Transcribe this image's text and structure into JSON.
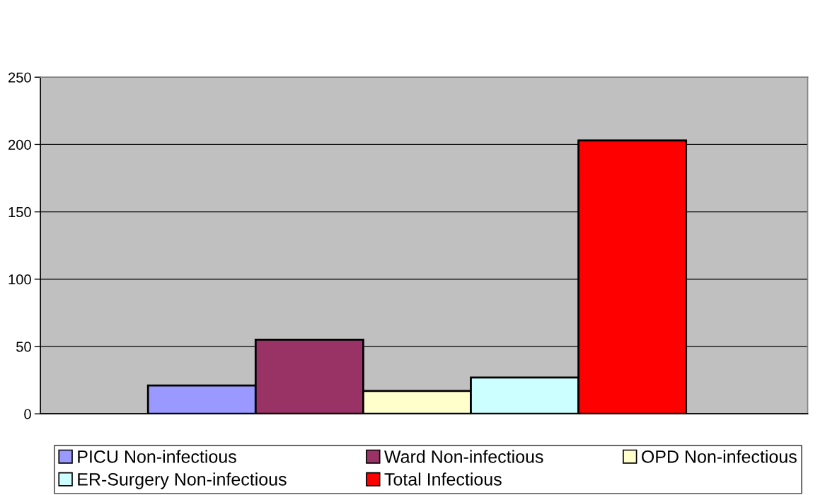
{
  "chart_data": {
    "type": "bar",
    "categories": [
      null
    ],
    "series": [
      {
        "name": "PICU Non-infectious",
        "color": "#9999ff",
        "values": [
          21
        ]
      },
      {
        "name": "Ward Non-infectious",
        "color": "#993366",
        "values": [
          55
        ]
      },
      {
        "name": "OPD Non-infectious",
        "color": "#ffffcc",
        "values": [
          17
        ]
      },
      {
        "name": "ER-Surgery Non-infectious",
        "color": "#ccffff",
        "values": [
          27
        ]
      },
      {
        "name": "Total Infectious",
        "color": "#ff0000",
        "values": [
          203
        ]
      }
    ],
    "ylim": [
      0,
      250
    ],
    "yticks": [
      0,
      50,
      100,
      150,
      200,
      250
    ],
    "grid": "y",
    "legend": "bottom",
    "tick_labels": "y"
  }
}
